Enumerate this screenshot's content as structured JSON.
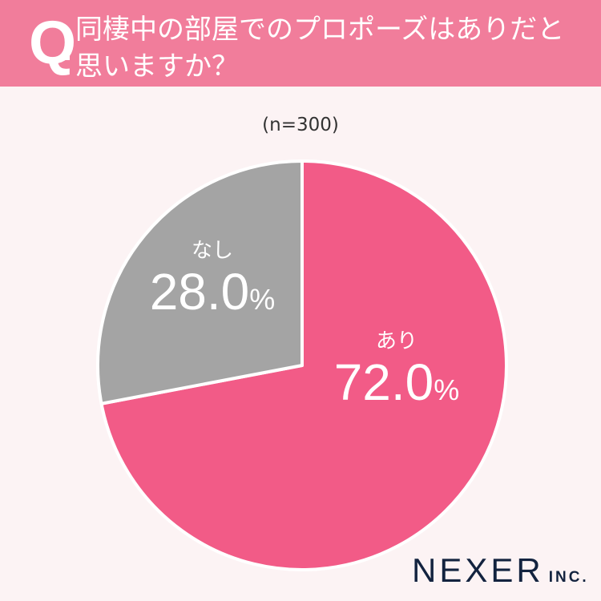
{
  "header": {
    "q_mark": "Q",
    "question": "同棲中の部屋でのプロポーズはありだと思いますか？"
  },
  "chart_data": {
    "type": "pie",
    "subtitle": "(n=300)",
    "categories": [
      "あり",
      "なし"
    ],
    "values": [
      72.0,
      28.0
    ],
    "value_labels": [
      "72.0",
      "28.0"
    ],
    "unit": "%",
    "colors": [
      "#f25b87",
      "#a4a4a4"
    ],
    "start": "top, clockwise"
  },
  "logo": {
    "name": "NEXER",
    "suffix": "INC."
  }
}
